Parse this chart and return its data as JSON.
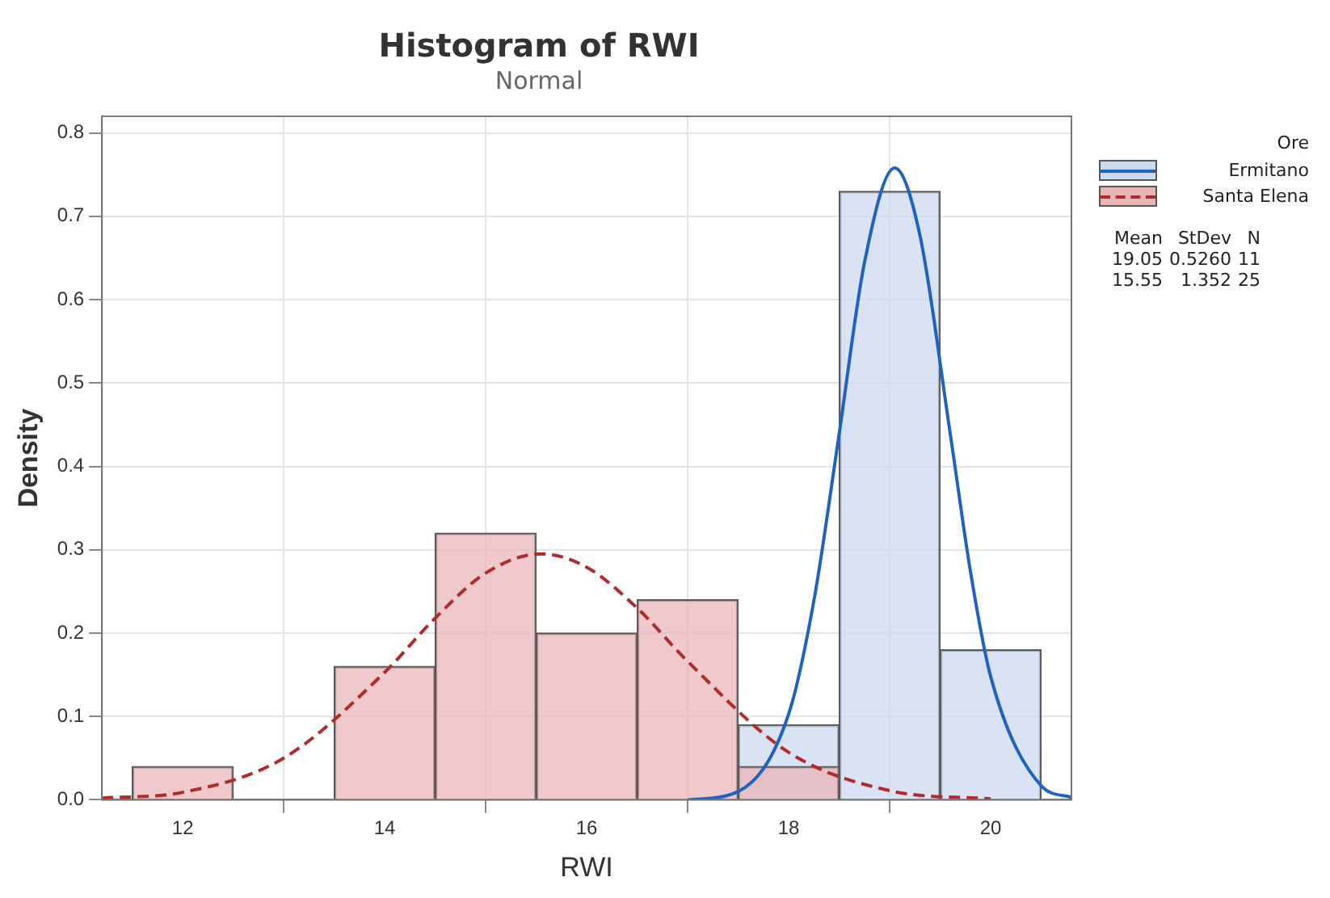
{
  "chart_data": {
    "type": "histogram",
    "title": "Histogram of RWI",
    "subtitle": "Normal",
    "xlabel": "RWI",
    "ylabel": "Density",
    "legend_title": "Ore",
    "legend": "right",
    "grid": true,
    "marker": "none",
    "xlim": [
      11.2,
      20.8
    ],
    "xticks": [
      12,
      14,
      16,
      18,
      20
    ],
    "ylim": [
      0,
      0.82
    ],
    "yticks": [
      {
        "value": 0,
        "label": "0.0"
      },
      {
        "value": 0.1,
        "label": "0.1"
      },
      {
        "value": 0.2,
        "label": "0.2"
      },
      {
        "value": 0.3,
        "label": "0.3"
      },
      {
        "value": 0.4,
        "label": "0.4"
      },
      {
        "value": 0.5,
        "label": "0.5"
      },
      {
        "value": 0.6,
        "label": "0.6"
      },
      {
        "value": 0.7,
        "label": "0.7"
      },
      {
        "value": 0.8,
        "label": "0.8"
      }
    ],
    "series": [
      {
        "name": "Ermitano",
        "color": "#cbd9ee",
        "bins": [
          17.5,
          18.5,
          19.5,
          20.5
        ],
        "values": [
          0.09,
          0.73,
          0.18
        ]
      },
      {
        "name": "Santa Elena",
        "color": "#e9b6b8",
        "bins": [
          11.5,
          12.5,
          13.5,
          14.5,
          15.5,
          16.5,
          17.5,
          18.5
        ],
        "values": [
          0.04,
          0,
          0.16,
          0.32,
          0.2,
          0.24,
          0.04
        ]
      },
      {
        "type": "line",
        "color": "#1f63c0",
        "line_style": "solid",
        "x": [
          17,
          17.5,
          18,
          18.25,
          18.5,
          18.75,
          19.05,
          19.3,
          19.6,
          19.8,
          20,
          20.5,
          20.8
        ],
        "values": [
          0,
          0.01,
          0.103,
          0.239,
          0.439,
          0.644,
          0.758,
          0.677,
          0.439,
          0.274,
          0.148,
          0.017,
          0.003
        ]
      },
      {
        "type": "line",
        "color": "#b22a2a",
        "line_style": "dashed",
        "x": [
          11.2,
          12,
          13,
          14,
          14.5,
          15,
          15.55,
          16,
          16.5,
          17,
          18,
          19,
          20
        ],
        "values": [
          0.002,
          0.009,
          0.05,
          0.153,
          0.218,
          0.272,
          0.295,
          0.279,
          0.23,
          0.166,
          0.057,
          0.011,
          0.001
        ]
      }
    ],
    "annotations": [
      "Mean StDev N",
      "19.05 0.5260 11",
      "15.55 1.352 25"
    ]
  }
}
